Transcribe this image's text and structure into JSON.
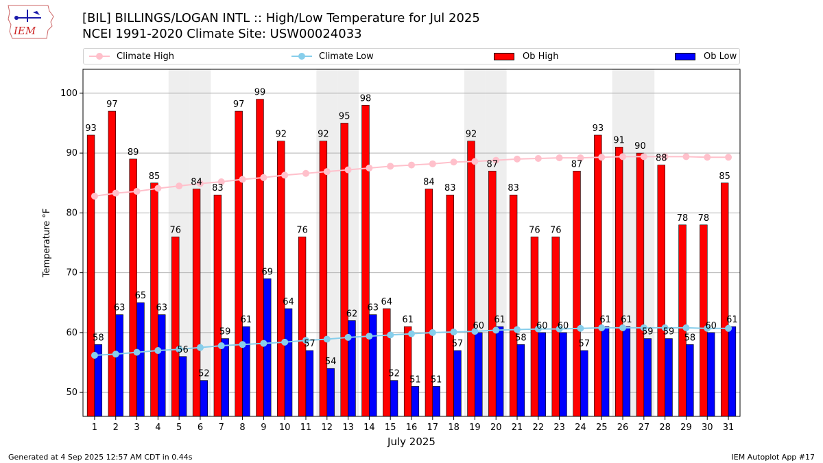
{
  "header": {
    "logo_text": "IEM",
    "title_line1": "[BIL] BILLINGS/LOGAN INTL :: High/Low Temperature for Jul 2025",
    "title_line2": "NCEI 1991-2020 Climate Site: USW00024033"
  },
  "legend": {
    "climate_high": "Climate High",
    "climate_low": "Climate Low",
    "ob_high": "Ob High",
    "ob_low": "Ob Low"
  },
  "footer": {
    "generated": "Generated at 4 Sep 2025 12:57 AM CDT in 0.44s",
    "app": "IEM Autoplot App #17"
  },
  "colors": {
    "ob_high": "#ff0000",
    "ob_low": "#0000ff",
    "climate_high": "#ffc0cb",
    "climate_low": "#87ceeb",
    "weekend_band": "#eeeeee",
    "grid": "#b0b0b0"
  },
  "chart_data": {
    "type": "bar",
    "title": "[BIL] BILLINGS/LOGAN INTL :: High/Low Temperature for Jul 2025",
    "xlabel": "July 2025",
    "ylabel": "Temperature °F",
    "ylim": [
      46,
      104
    ],
    "yticks": [
      50,
      60,
      70,
      80,
      90,
      100
    ],
    "grid": true,
    "legend_position": "top",
    "categories": [
      "1",
      "2",
      "3",
      "4",
      "5",
      "6",
      "7",
      "8",
      "9",
      "10",
      "11",
      "12",
      "13",
      "14",
      "15",
      "16",
      "17",
      "18",
      "19",
      "20",
      "21",
      "22",
      "23",
      "24",
      "25",
      "26",
      "27",
      "28",
      "29",
      "30",
      "31"
    ],
    "shaded_days": [
      5,
      6,
      12,
      13,
      19,
      20,
      26,
      27
    ],
    "series": [
      {
        "name": "Ob High",
        "kind": "bar",
        "values": [
          93,
          97,
          89,
          85,
          76,
          84,
          83,
          97,
          99,
          92,
          76,
          92,
          95,
          98,
          64,
          61,
          84,
          83,
          92,
          87,
          83,
          76,
          76,
          87,
          93,
          91,
          90,
          88,
          78,
          78,
          85
        ]
      },
      {
        "name": "Ob Low",
        "kind": "bar",
        "values": [
          58,
          63,
          65,
          63,
          56,
          52,
          59,
          61,
          69,
          64,
          57,
          54,
          62,
          63,
          52,
          51,
          51,
          57,
          60,
          61,
          58,
          60,
          60,
          57,
          61,
          61,
          59,
          59,
          58,
          60,
          61
        ]
      },
      {
        "name": "Climate High",
        "kind": "line",
        "values": [
          82.8,
          83.3,
          83.6,
          84.1,
          84.5,
          84.9,
          85.2,
          85.6,
          85.9,
          86.3,
          86.6,
          86.9,
          87.2,
          87.5,
          87.8,
          88.0,
          88.2,
          88.5,
          88.6,
          88.8,
          89.0,
          89.1,
          89.2,
          89.2,
          89.3,
          89.4,
          89.4,
          89.4,
          89.4,
          89.3,
          89.3
        ]
      },
      {
        "name": "Climate Low",
        "kind": "line",
        "values": [
          56.2,
          56.4,
          56.7,
          57.0,
          57.2,
          57.5,
          57.8,
          58.0,
          58.2,
          58.4,
          58.7,
          58.9,
          59.2,
          59.4,
          59.6,
          59.8,
          60.0,
          60.1,
          60.2,
          60.4,
          60.5,
          60.6,
          60.6,
          60.7,
          60.8,
          60.8,
          60.8,
          60.8,
          60.8,
          60.7,
          60.7
        ]
      }
    ]
  }
}
